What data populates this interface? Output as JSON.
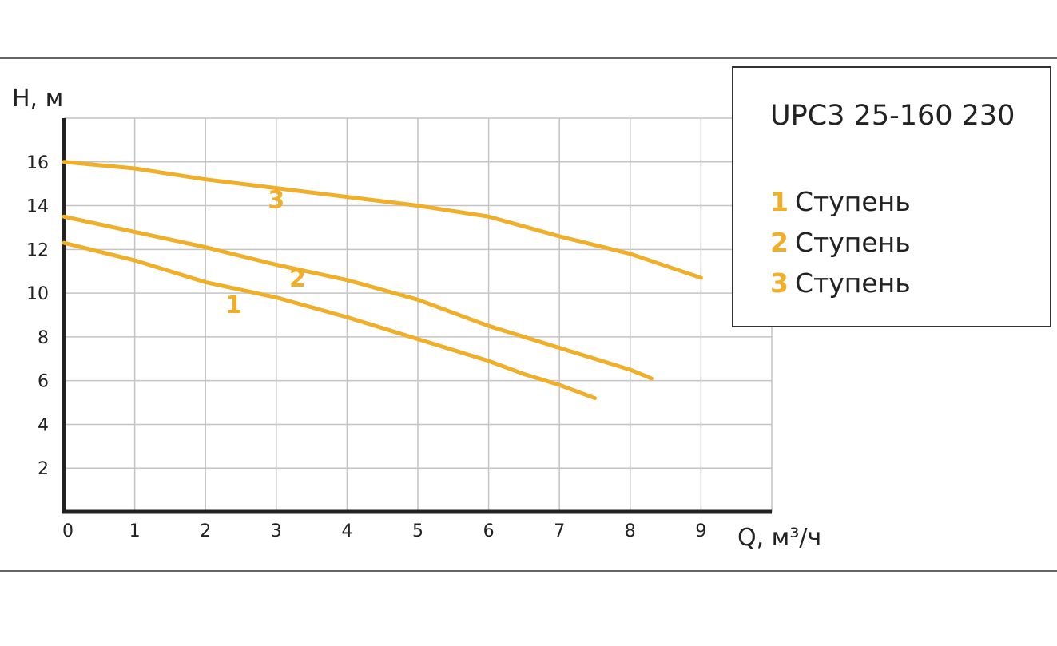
{
  "chart_data": {
    "type": "line",
    "title": "UPC3 25-160 230",
    "xlabel": "Q, м³/ч",
    "ylabel": "H, м",
    "xlim": [
      0,
      10
    ],
    "ylim": [
      0,
      18
    ],
    "x_ticks": [
      "0",
      "1",
      "2",
      "3",
      "4",
      "5",
      "6",
      "7",
      "8",
      "9"
    ],
    "y_ticks": [
      "2",
      "4",
      "6",
      "8",
      "10",
      "12",
      "14",
      "16"
    ],
    "grid": true,
    "legend_position": "top-right",
    "series_color": "#F0AF2A",
    "series": [
      {
        "name": "1 Ступень",
        "label": "1",
        "label_at": [
          2.4,
          9.1
        ],
        "x": [
          0,
          1,
          2,
          3,
          4,
          5,
          6,
          6.5,
          7,
          7.5
        ],
        "y": [
          12.3,
          11.5,
          10.5,
          9.8,
          8.9,
          7.9,
          6.9,
          6.3,
          5.8,
          5.2
        ]
      },
      {
        "name": "2 Ступень",
        "label": "2",
        "label_at": [
          3.3,
          10.3
        ],
        "x": [
          0,
          1,
          2,
          3,
          4,
          5,
          6,
          7,
          8,
          8.3
        ],
        "y": [
          13.5,
          12.8,
          12.1,
          11.3,
          10.6,
          9.7,
          8.5,
          7.5,
          6.5,
          6.1
        ]
      },
      {
        "name": "3 Ступень",
        "label": "3",
        "label_at": [
          3.0,
          13.9
        ],
        "x": [
          0,
          1,
          2,
          3,
          4,
          5,
          6,
          7,
          8,
          9
        ],
        "y": [
          16.0,
          15.7,
          15.2,
          14.8,
          14.4,
          14.0,
          13.5,
          12.6,
          11.8,
          10.7
        ]
      }
    ]
  },
  "legend": {
    "title": "UPC3 25-160 230",
    "items": [
      {
        "num": "1",
        "text": "Ступень"
      },
      {
        "num": "2",
        "text": "Ступень"
      },
      {
        "num": "3",
        "text": "Ступень"
      }
    ]
  }
}
